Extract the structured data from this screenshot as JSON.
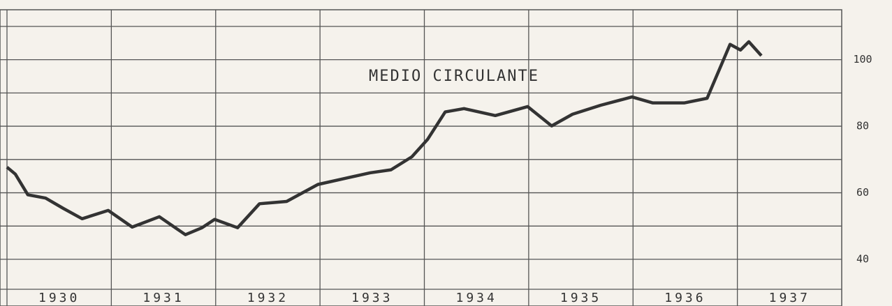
{
  "chart_data": {
    "type": "line",
    "title": "MEDIO CIRCULANTE",
    "x": [
      1930.0,
      1930.08,
      1930.2,
      1930.37,
      1930.54,
      1930.72,
      1930.97,
      1931.2,
      1931.46,
      1931.71,
      1931.87,
      1931.99,
      1932.21,
      1932.42,
      1932.68,
      1932.98,
      1933.28,
      1933.48,
      1933.68,
      1933.88,
      1934.03,
      1934.2,
      1934.38,
      1934.68,
      1934.99,
      1935.22,
      1935.42,
      1935.69,
      1935.99,
      1936.19,
      1936.49,
      1936.71,
      1936.93,
      1937.03,
      1937.11,
      1937.23
    ],
    "series": [
      {
        "color": "#333333",
        "values": [
          67.7,
          65.6,
          59.4,
          58.4,
          55.3,
          52.2,
          54.7,
          49.7,
          52.8,
          47.4,
          49.5,
          52,
          49.5,
          56.7,
          57.4,
          62.5,
          64.6,
          66,
          66.9,
          70.8,
          76,
          84.3,
          85.3,
          83.2,
          85.9,
          80.1,
          83.6,
          86.3,
          88.8,
          87,
          87,
          88.4,
          104.6,
          102.9,
          105.4,
          101.2
        ]
      }
    ],
    "xlim": [
      1930,
      1938
    ],
    "xticks": [
      1930,
      1931,
      1932,
      1933,
      1934,
      1935,
      1936,
      1937
    ],
    "ylim": [
      31,
      115
    ],
    "yticks": [
      40,
      60,
      80,
      100
    ],
    "grid_yticks": [
      40,
      50,
      60,
      70,
      80,
      90,
      100,
      110
    ],
    "grid": true
  }
}
